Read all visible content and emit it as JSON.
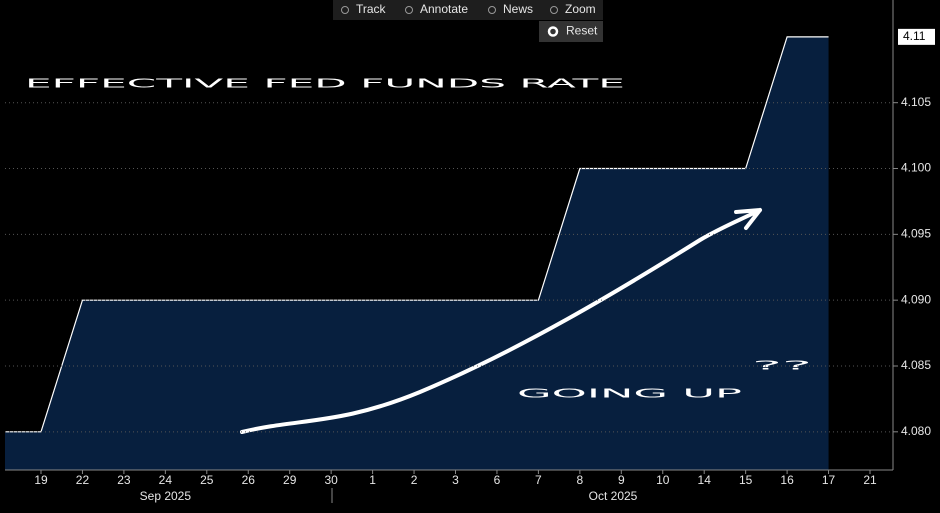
{
  "chart_data": {
    "type": "area",
    "toolbar": [
      "Track",
      "Annotate",
      "News",
      "Zoom"
    ],
    "reset_button": "Reset",
    "annotations": [
      "EFFECTIVE FED FUNDS RATE",
      "GOING UP",
      "??"
    ],
    "categories": [
      null,
      "19",
      "22",
      "23",
      "24",
      "25",
      "26",
      "29",
      "30",
      "1",
      "2",
      "3",
      "6",
      "7",
      "8",
      "9",
      "10",
      "14",
      "15",
      "16",
      "17",
      "21"
    ],
    "values": [
      4.08,
      4.08,
      4.09,
      4.09,
      4.09,
      4.09,
      4.09,
      4.09,
      4.09,
      4.09,
      4.09,
      4.09,
      4.09,
      4.09,
      4.1,
      4.1,
      4.1,
      4.1,
      4.1,
      4.11,
      4.11,
      null
    ],
    "x_groups": [
      "Sep 2025",
      "Oct 2025"
    ],
    "last_value": {
      "value": 4.11,
      "label": "4.11"
    },
    "ylim": [
      4.0771,
      4.1128
    ],
    "yticks": [
      {
        "value": 4.08,
        "label": "4.080"
      },
      {
        "value": 4.085,
        "label": "4.085"
      },
      {
        "value": 4.09,
        "label": "4.090"
      },
      {
        "value": 4.095,
        "label": "4.095"
      },
      {
        "value": 4.1,
        "label": "4.100"
      },
      {
        "value": 4.105,
        "label": "4.105"
      }
    ],
    "grid": true,
    "color": "#071f3e",
    "line_color": "#ffffff"
  }
}
